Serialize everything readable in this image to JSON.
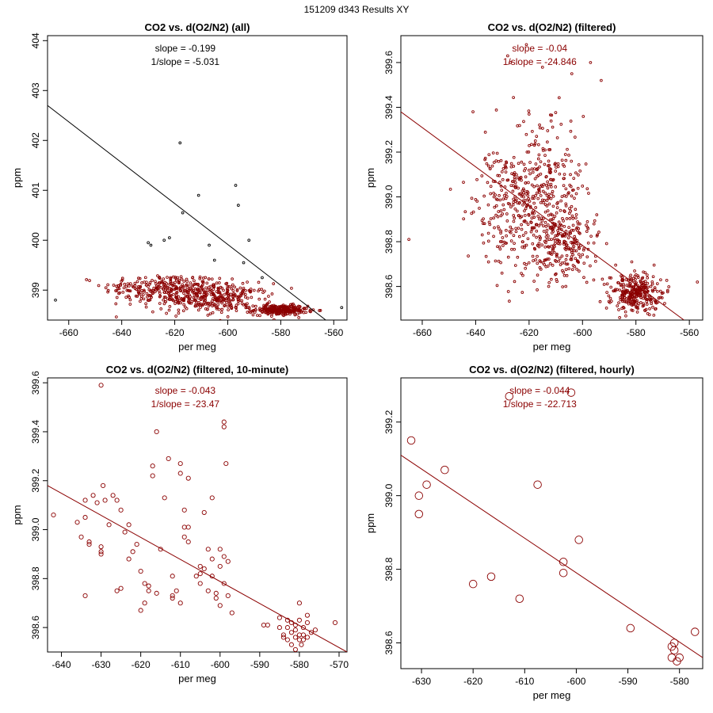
{
  "figure_title": "151209   d343   Results XY",
  "chart_data": [
    {
      "type": "scatter",
      "title": "CO2 vs. d(O2/N2) (all)",
      "xlabel": "per meg",
      "ylabel": "ppm",
      "xlim": [
        -668,
        -555
      ],
      "ylim": [
        398.4,
        404.1
      ],
      "xticks": [
        -660,
        -640,
        -620,
        -600,
        -580,
        -560
      ],
      "yticks": [
        399,
        400,
        401,
        402,
        403,
        404
      ],
      "slope_label": "slope = -0.199",
      "inv_slope_label": "1/slope = -5.031",
      "annotation_color": "#000000",
      "line_color": "#000000",
      "point_color": "#8b0000",
      "point_radius": 1.4,
      "fit_line": [
        [
          -668,
          402.7
        ],
        [
          -563,
          398.4
        ]
      ],
      "outlier_color": "#000000",
      "outliers": [
        [
          -630,
          399.95
        ],
        [
          -629,
          399.9
        ],
        [
          -624,
          400.0
        ],
        [
          -622,
          400.05
        ],
        [
          -618,
          401.95
        ],
        [
          -617,
          400.55
        ],
        [
          -611,
          400.9
        ],
        [
          -607,
          399.9
        ],
        [
          -605,
          399.6
        ],
        [
          -597,
          401.1
        ],
        [
          -596,
          400.7
        ],
        [
          -594,
          399.55
        ],
        [
          -592,
          400.0
        ],
        [
          -587,
          399.25
        ],
        [
          -665,
          398.8
        ],
        [
          -557,
          398.65
        ]
      ],
      "clusters": [
        {
          "cx": -625,
          "cy": 399.05,
          "sx": 11,
          "sy": 0.14,
          "n": 220
        },
        {
          "cx": -612,
          "cy": 398.85,
          "sx": 10,
          "sy": 0.16,
          "n": 200
        },
        {
          "cx": -600,
          "cy": 398.85,
          "sx": 8,
          "sy": 0.14,
          "n": 150
        },
        {
          "cx": -580,
          "cy": 398.6,
          "sx": 5,
          "sy": 0.05,
          "n": 260
        }
      ]
    },
    {
      "type": "scatter",
      "title": "CO2 vs. d(O2/N2) (filtered)",
      "xlabel": "per meg",
      "ylabel": "ppm",
      "xlim": [
        -668,
        -555
      ],
      "ylim": [
        398.45,
        399.72
      ],
      "xticks": [
        -660,
        -640,
        -620,
        -600,
        -580,
        -560
      ],
      "yticks": [
        398.6,
        398.8,
        399.0,
        399.2,
        399.4,
        399.6
      ],
      "slope_label": "slope = -0.04",
      "inv_slope_label": "1/slope = -24.846",
      "annotation_color": "#8b0000",
      "line_color": "#8b0000",
      "point_color": "#8b0000",
      "point_radius": 1.4,
      "fit_line": [
        [
          -668,
          399.38
        ],
        [
          -562,
          398.45
        ]
      ],
      "outliers": [
        [
          -630,
          399.73
        ],
        [
          -628,
          399.63
        ],
        [
          -627,
          399.6
        ],
        [
          -621,
          399.68
        ],
        [
          -604,
          399.55
        ],
        [
          -597,
          399.6
        ],
        [
          -593,
          399.52
        ],
        [
          -665,
          398.81
        ],
        [
          -641,
          399.38
        ],
        [
          -557,
          398.62
        ]
      ],
      "clusters": [
        {
          "cx": -627,
          "cy": 398.95,
          "sx": 7,
          "sy": 0.14,
          "n": 260
        },
        {
          "cx": -614,
          "cy": 399.05,
          "sx": 7,
          "sy": 0.17,
          "n": 220
        },
        {
          "cx": -607,
          "cy": 398.78,
          "sx": 7,
          "sy": 0.09,
          "n": 220
        },
        {
          "cx": -580,
          "cy": 398.57,
          "sx": 4.5,
          "sy": 0.045,
          "n": 300
        }
      ]
    },
    {
      "type": "scatter",
      "title": "CO2 vs. d(O2/N2) (filtered, 10-minute)",
      "xlabel": "per meg",
      "ylabel": "ppm",
      "xlim": [
        -643.5,
        -568
      ],
      "ylim": [
        398.5,
        399.62
      ],
      "xticks": [
        -640,
        -630,
        -620,
        -610,
        -600,
        -590,
        -580,
        -570
      ],
      "yticks": [
        398.6,
        398.8,
        399.0,
        399.2,
        399.4,
        399.6
      ],
      "slope_label": "slope = -0.043",
      "inv_slope_label": "1/slope = -23.47",
      "annotation_color": "#8b0000",
      "line_color": "#8b0000",
      "point_color": "#8b0000",
      "point_radius": 2.6,
      "fit_line": [
        [
          -643.5,
          399.18
        ],
        [
          -568,
          398.5
        ]
      ],
      "points": [
        [
          -642,
          399.06
        ],
        [
          -636,
          399.03
        ],
        [
          -635,
          398.97
        ],
        [
          -634,
          399.05
        ],
        [
          -634,
          399.12
        ],
        [
          -633,
          398.95
        ],
        [
          -633,
          398.94
        ],
        [
          -634,
          398.73
        ],
        [
          -632,
          399.14
        ],
        [
          -631,
          399.11
        ],
        [
          -630,
          398.93
        ],
        [
          -630,
          398.91
        ],
        [
          -630,
          398.9
        ],
        [
          -629.5,
          399.18
        ],
        [
          -629,
          399.12
        ],
        [
          -628,
          399.02
        ],
        [
          -630,
          399.59
        ],
        [
          -627,
          399.14
        ],
        [
          -626,
          399.12
        ],
        [
          -625,
          399.08
        ],
        [
          -624,
          398.99
        ],
        [
          -623,
          399.02
        ],
        [
          -623,
          398.88
        ],
        [
          -622,
          398.91
        ],
        [
          -626,
          398.75
        ],
        [
          -625,
          398.76
        ],
        [
          -621,
          398.94
        ],
        [
          -620,
          398.83
        ],
        [
          -620,
          398.67
        ],
        [
          -619,
          398.7
        ],
        [
          -619,
          398.78
        ],
        [
          -618,
          398.75
        ],
        [
          -618,
          398.77
        ],
        [
          -617,
          399.26
        ],
        [
          -617,
          399.22
        ],
        [
          -616,
          399.4
        ],
        [
          -616,
          398.74
        ],
        [
          -615,
          398.92
        ],
        [
          -614,
          399.13
        ],
        [
          -613,
          399.29
        ],
        [
          -612,
          398.81
        ],
        [
          -612,
          398.72
        ],
        [
          -612,
          398.73
        ],
        [
          -611,
          398.75
        ],
        [
          -610,
          399.23
        ],
        [
          -610,
          399.27
        ],
        [
          -610,
          398.7
        ],
        [
          -609,
          399.08
        ],
        [
          -609,
          398.97
        ],
        [
          -609,
          399.01
        ],
        [
          -608,
          399.01
        ],
        [
          -608,
          398.95
        ],
        [
          -608,
          399.21
        ],
        [
          -606,
          398.81
        ],
        [
          -605,
          398.82
        ],
        [
          -605,
          398.78
        ],
        [
          -605,
          398.85
        ],
        [
          -604,
          398.84
        ],
        [
          -604,
          399.07
        ],
        [
          -603,
          398.75
        ],
        [
          -603,
          398.92
        ],
        [
          -602,
          398.88
        ],
        [
          -602,
          398.81
        ],
        [
          -602,
          399.13
        ],
        [
          -601,
          398.74
        ],
        [
          -601,
          398.72
        ],
        [
          -600,
          398.92
        ],
        [
          -600,
          398.69
        ],
        [
          -600,
          398.85
        ],
        [
          -599,
          398.89
        ],
        [
          -599,
          398.78
        ],
        [
          -599,
          399.44
        ],
        [
          -599,
          399.42
        ],
        [
          -598.5,
          399.27
        ],
        [
          -598,
          398.73
        ],
        [
          -598,
          398.87
        ],
        [
          -597,
          398.66
        ],
        [
          -589,
          398.61
        ],
        [
          -588,
          398.61
        ],
        [
          -585,
          398.6
        ],
        [
          -585,
          398.64
        ],
        [
          -584,
          398.57
        ],
        [
          -584,
          398.56
        ],
        [
          -583,
          398.63
        ],
        [
          -583,
          398.55
        ],
        [
          -583,
          398.6
        ],
        [
          -582,
          398.58
        ],
        [
          -582,
          398.62
        ],
        [
          -582,
          398.53
        ],
        [
          -581,
          398.59
        ],
        [
          -581,
          398.61
        ],
        [
          -581,
          398.56
        ],
        [
          -581,
          398.51
        ],
        [
          -580,
          398.57
        ],
        [
          -580,
          398.63
        ],
        [
          -580,
          398.55
        ],
        [
          -580,
          398.7
        ],
        [
          -579.5,
          398.53
        ],
        [
          -579,
          398.57
        ],
        [
          -579,
          398.6
        ],
        [
          -579,
          398.55
        ],
        [
          -578,
          398.62
        ],
        [
          -578,
          398.65
        ],
        [
          -578,
          398.56
        ],
        [
          -577,
          398.58
        ],
        [
          -576,
          398.59
        ],
        [
          -571,
          398.62
        ]
      ]
    },
    {
      "type": "scatter",
      "title": "CO2 vs. d(O2/N2) (filtered, hourly)",
      "xlabel": "per meg",
      "ylabel": "ppm",
      "xlim": [
        -634,
        -575.5
      ],
      "ylim": [
        398.53,
        399.32
      ],
      "xticks": [
        -630,
        -620,
        -610,
        -600,
        -590,
        -580
      ],
      "yticks": [
        398.6,
        398.8,
        399.0,
        399.2
      ],
      "slope_label": "slope = -0.044",
      "inv_slope_label": "1/slope = -22.713",
      "annotation_color": "#8b0000",
      "line_color": "#8b0000",
      "point_color": "#8b0000",
      "point_radius": 4.8,
      "fit_line": [
        [
          -634,
          399.11
        ],
        [
          -575.5,
          398.56
        ]
      ],
      "points": [
        [
          -632,
          399.15
        ],
        [
          -630.5,
          399.0
        ],
        [
          -630.5,
          398.95
        ],
        [
          -629,
          399.03
        ],
        [
          -625.5,
          399.07
        ],
        [
          -620,
          398.76
        ],
        [
          -616.5,
          398.78
        ],
        [
          -613,
          399.27
        ],
        [
          -611,
          398.72
        ],
        [
          -607.5,
          399.03
        ],
        [
          -602.5,
          398.82
        ],
        [
          -602.5,
          398.79
        ],
        [
          -601,
          399.28
        ],
        [
          -599.5,
          398.88
        ],
        [
          -589.5,
          398.64
        ],
        [
          -581.5,
          398.59
        ],
        [
          -581.5,
          398.56
        ],
        [
          -581,
          398.58
        ],
        [
          -581,
          398.6
        ],
        [
          -580.5,
          398.55
        ],
        [
          -580,
          398.56
        ],
        [
          -577,
          398.63
        ]
      ]
    }
  ]
}
